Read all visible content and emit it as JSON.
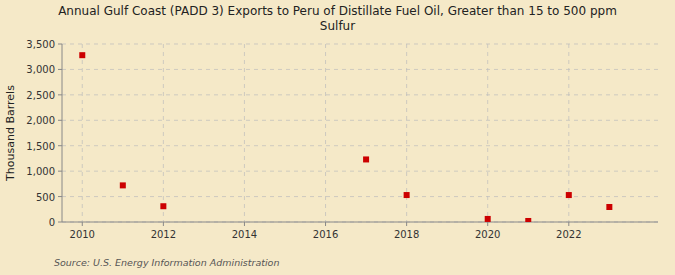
{
  "chart_data": {
    "type": "scatter",
    "title": "Annual Gulf Coast (PADD 3) Exports to Peru of Distillate Fuel Oil, Greater than 15 to 500 ppm\nSulfur",
    "ylabel": "Thousand Barrels",
    "source": "Source: U.S. Energy Information Administration",
    "x": [
      2010,
      2011,
      2012,
      2017,
      2018,
      2020,
      2021,
      2022,
      2023
    ],
    "values": [
      3280,
      720,
      310,
      1230,
      530,
      60,
      20,
      530,
      295
    ],
    "color": "#cc0000",
    "marker": "square",
    "grid": true,
    "xlim": [
      2009.5,
      2024.2
    ],
    "ylim": [
      0,
      3500
    ],
    "xticks": [
      2010,
      2012,
      2014,
      2016,
      2018,
      2020,
      2022
    ],
    "yticks": [
      0,
      500,
      {
        "value": 1000,
        "label": "1,000"
      },
      {
        "value": 1500,
        "label": "1,500"
      },
      {
        "value": 2000,
        "label": "2,000"
      },
      {
        "value": 2500,
        "label": "2,500"
      },
      {
        "value": 3000,
        "label": "3,000"
      },
      {
        "value": 3500,
        "label": "3,500"
      }
    ]
  }
}
